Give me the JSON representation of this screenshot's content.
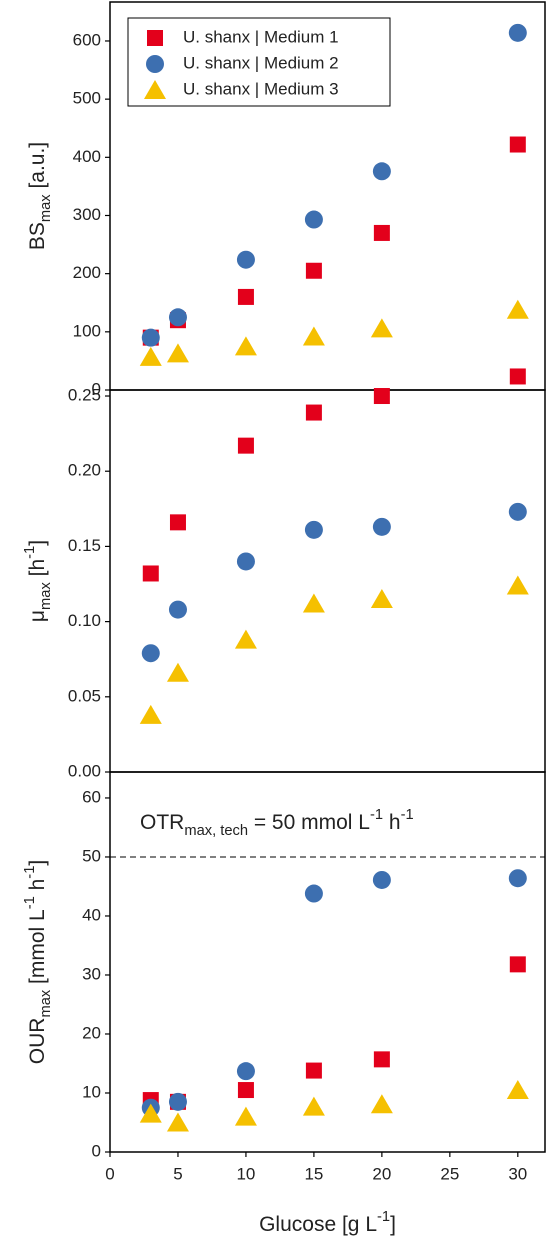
{
  "chart_data": [
    {
      "type": "scatter",
      "ylabel": [
        {
          "text": "BS"
        },
        {
          "text": "max",
          "sub": true
        },
        {
          "text": " [a.u.]"
        }
      ],
      "x": [
        3,
        5,
        10,
        15,
        20,
        30
      ],
      "xlim": [
        0,
        32
      ],
      "ylim": [
        0,
        667
      ],
      "yticks": [
        0,
        100,
        200,
        300,
        400,
        500,
        600
      ],
      "legend": "upper left",
      "series": [
        {
          "name": "U. shanx | Medium 1",
          "color": "#e3001b",
          "marker": "square",
          "values": [
            90,
            120,
            160,
            205,
            270,
            422
          ]
        },
        {
          "name": "U. shanx | Medium 2",
          "color": "#3d6fb0",
          "marker": "circle",
          "values": [
            90,
            125,
            224,
            293,
            376,
            614
          ]
        },
        {
          "name": "U. shanx | Medium 3",
          "color": "#f5c000",
          "marker": "triangle",
          "values": [
            57,
            63,
            75,
            92,
            106,
            138
          ]
        }
      ]
    },
    {
      "type": "scatter",
      "ylabel": [
        {
          "text": "μ"
        },
        {
          "text": "max",
          "sub": true
        },
        {
          "text": " [h"
        },
        {
          "text": "-1",
          "sup": true
        },
        {
          "text": "]"
        }
      ],
      "x": [
        3,
        5,
        10,
        15,
        20,
        30
      ],
      "xlim": [
        0,
        32
      ],
      "ylim": [
        0,
        0.254
      ],
      "yticks": [
        {
          "value": 0,
          "label": "0.00"
        },
        {
          "value": 0.05,
          "label": "0.05"
        },
        {
          "value": 0.1,
          "label": "0.10"
        },
        {
          "value": 0.15,
          "label": "0.15"
        },
        {
          "value": 0.2,
          "label": "0.20"
        },
        {
          "value": 0.25,
          "label": "0.25"
        }
      ],
      "series": [
        {
          "color": "#e3001b",
          "marker": "square",
          "values": [
            0.132,
            0.166,
            0.217,
            0.239,
            0.25,
            0.263
          ]
        },
        {
          "color": "#3d6fb0",
          "marker": "circle",
          "values": [
            0.079,
            0.108,
            0.14,
            0.161,
            0.163,
            0.173
          ]
        },
        {
          "color": "#f5c000",
          "marker": "triangle",
          "values": [
            0.038,
            0.066,
            0.088,
            0.112,
            0.115,
            0.124
          ]
        }
      ]
    },
    {
      "type": "scatter",
      "ylabel": [
        {
          "text": "OUR"
        },
        {
          "text": "max",
          "sub": true
        },
        {
          "text": " [mmol L"
        },
        {
          "text": "-1",
          "sup": true
        },
        {
          "text": " h"
        },
        {
          "text": "-1",
          "sup": true
        },
        {
          "text": "]"
        }
      ],
      "xlabel": [
        {
          "text": "Glucose [g L"
        },
        {
          "text": "-1",
          "sup": true
        },
        {
          "text": "]"
        }
      ],
      "x": [
        3,
        5,
        10,
        15,
        20,
        30
      ],
      "xlim": [
        0,
        32
      ],
      "xticks": [
        0,
        5,
        10,
        15,
        20,
        25,
        30
      ],
      "ylim": [
        0,
        64.4
      ],
      "yticks": [
        0,
        10,
        20,
        30,
        40,
        50,
        60
      ],
      "hline": {
        "y": 50,
        "style": "dashed"
      },
      "annotation": [
        {
          "text": "OTR"
        },
        {
          "text": "max, tech",
          "sub": true
        },
        {
          "text": " = 50 mmol L"
        },
        {
          "text": "-1",
          "sup": true
        },
        {
          "text": " h"
        },
        {
          "text": "-1",
          "sup": true
        }
      ],
      "series": [
        {
          "color": "#e3001b",
          "marker": "square",
          "values": [
            8.8,
            8.5,
            10.5,
            13.8,
            15.7,
            31.8
          ]
        },
        {
          "color": "#3d6fb0",
          "marker": "circle",
          "values": [
            7.5,
            8.5,
            13.7,
            43.8,
            46.1,
            46.4
          ]
        },
        {
          "color": "#f5c000",
          "marker": "triangle",
          "values": [
            6.5,
            5,
            6,
            7.7,
            8.1,
            10.5
          ]
        }
      ]
    }
  ]
}
